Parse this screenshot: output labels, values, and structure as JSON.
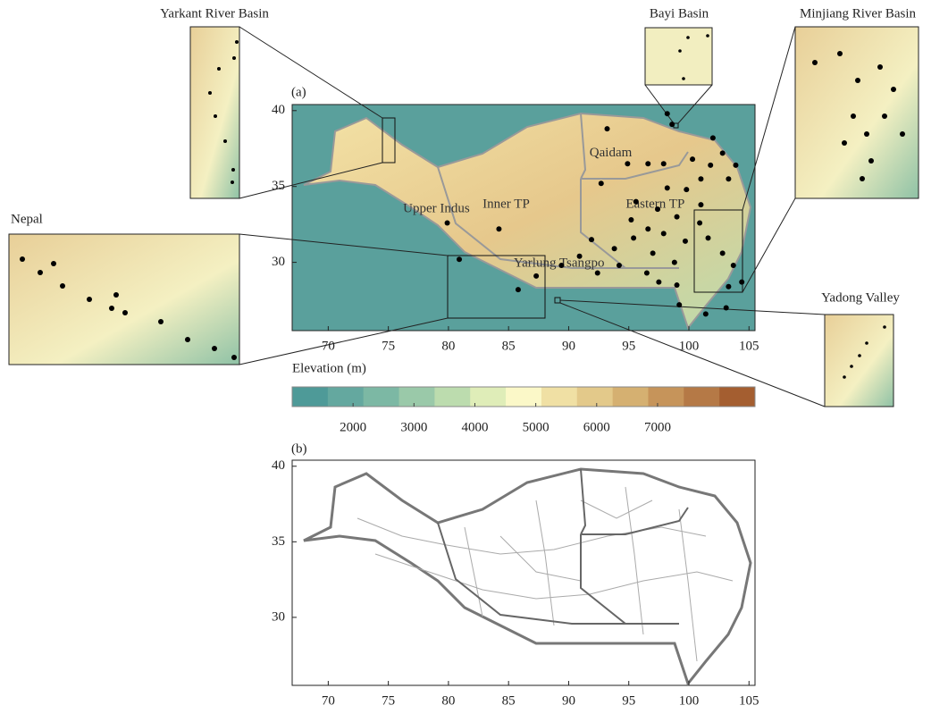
{
  "panel_a": {
    "label": "(a)",
    "xlim": [
      67,
      105.5
    ],
    "ylim": [
      25.5,
      40.4
    ],
    "xticks": [
      70,
      75,
      80,
      85,
      90,
      95,
      100,
      105
    ],
    "yticks": [
      30,
      35,
      40
    ],
    "regions": [
      "Qaidam",
      "Inner TP",
      "Eastern TP",
      "Upper Indus",
      "Yarlung Tsangpo"
    ],
    "stations": {
      "lon": [
        93.2,
        98.2,
        98.6,
        102.0,
        102.8,
        103.9,
        97.9,
        94.9,
        96.6,
        100.3,
        101.8,
        103.3,
        101.0,
        99.8,
        98.2,
        95.6,
        97.4,
        99.0,
        95.2,
        96.6,
        95.4,
        93.8,
        91.9,
        90.9,
        97.0,
        98.8,
        99.7,
        101.6,
        102.8,
        103.7,
        103.3,
        104.4,
        99.0,
        99.2,
        101.4,
        103.1,
        97.5,
        96.5,
        94.2,
        92.4,
        89.4,
        87.3,
        85.8,
        84.2,
        79.9,
        80.9,
        92.7,
        101.0,
        100.9,
        97.9
      ],
      "lat": [
        38.8,
        39.8,
        39.1,
        38.2,
        37.2,
        36.4,
        36.5,
        36.5,
        36.5,
        36.8,
        36.4,
        35.5,
        35.5,
        34.8,
        34.9,
        34.0,
        33.5,
        33.0,
        32.8,
        32.2,
        31.6,
        30.9,
        31.5,
        30.4,
        30.6,
        30.0,
        31.4,
        31.6,
        30.6,
        29.8,
        28.4,
        28.7,
        28.5,
        27.2,
        26.6,
        27.0,
        28.7,
        29.3,
        29.8,
        29.3,
        29.8,
        29.1,
        28.2,
        32.2,
        32.6,
        30.2,
        35.2,
        33.8,
        32.6,
        31.9
      ]
    }
  },
  "colorbar": {
    "label": "Elevation (m)",
    "clim": [
      1000,
      8600
    ],
    "ticks": [
      2000,
      3000,
      4000,
      5000,
      6000,
      7000
    ],
    "colors": [
      "#4e9a98",
      "#64a89f",
      "#7cb8a4",
      "#9ac9a9",
      "#bcdcae",
      "#dfedb8",
      "#fbf8c8",
      "#f0e0a4",
      "#e3c98a",
      "#d5b071",
      "#c6945a",
      "#b57946",
      "#a45e30"
    ]
  },
  "panel_b": {
    "label": "(b)",
    "xlim": [
      67,
      105.5
    ],
    "ylim": [
      25.5,
      40.4
    ],
    "xticks": [
      70,
      75,
      80,
      85,
      90,
      95,
      100,
      105
    ],
    "yticks": [
      30,
      35,
      40
    ]
  },
  "insets": [
    "Yarkant River Basin",
    "Bayi Basin",
    "Minjiang River Basin",
    "Nepal",
    "Yadong Valley"
  ]
}
